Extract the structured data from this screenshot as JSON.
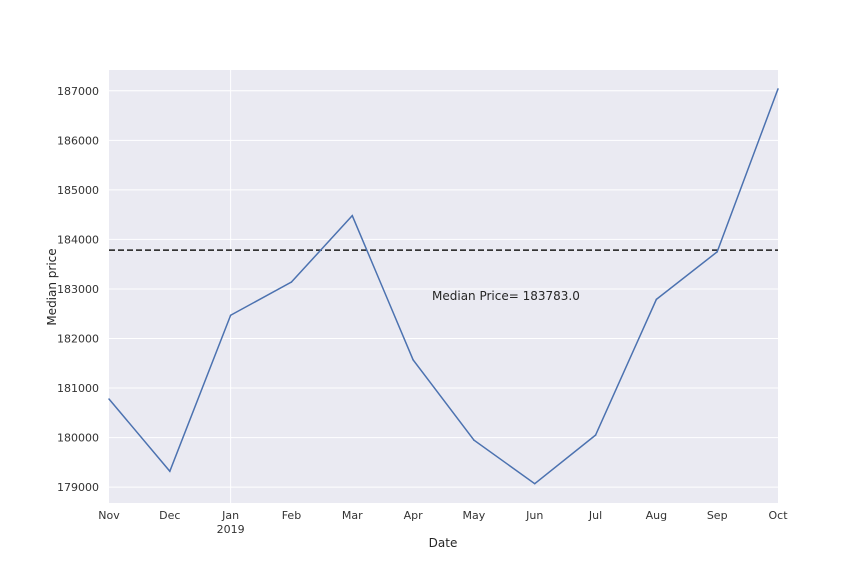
{
  "chart_data": {
    "type": "line",
    "xlabel": "Date",
    "ylabel": "Median price",
    "x": [
      "Nov",
      "Dec",
      "Jan",
      "Feb",
      "Mar",
      "Apr",
      "May",
      "Jun",
      "Jul",
      "Aug",
      "Sep",
      "Oct"
    ],
    "x_tick_sublabels": {
      "Jan": "2019"
    },
    "series": [
      {
        "values": [
          180780,
          179320,
          182470,
          183140,
          184480,
          181570,
          179950,
          179070,
          180050,
          182790,
          183750,
          187040
        ],
        "color": "#4c72b0"
      }
    ],
    "reference_line": {
      "y": 183783.0,
      "style": "dashed",
      "color": "#1a1a1a"
    },
    "annotation": "Median Price= 183783.0",
    "yticks": [
      179000,
      180000,
      181000,
      182000,
      183000,
      184000,
      185000,
      186000,
      187000
    ],
    "ylim": [
      178680,
      187420
    ],
    "grid": true,
    "background": "#eaeaf2",
    "gridline_color": "#ffffff"
  }
}
